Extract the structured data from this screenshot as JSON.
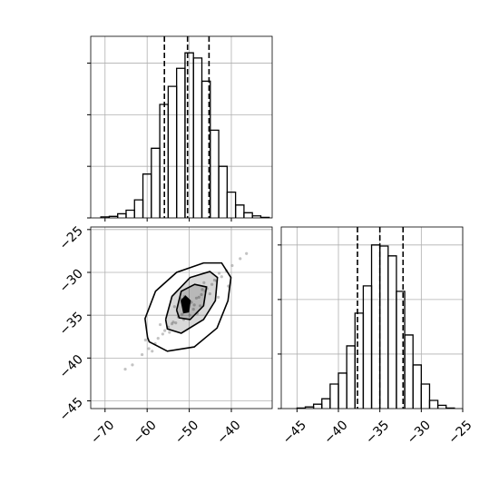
{
  "chart_data": [
    {
      "type": "histogram",
      "color": "#000000",
      "bins": [
        -71,
        -69,
        -67,
        -65,
        -63,
        -61,
        -59,
        -57,
        -55,
        -53,
        -51,
        -49,
        -47,
        -45,
        -43,
        -41,
        -39,
        -37,
        -35,
        -33,
        -31
      ],
      "counts": [
        2,
        3,
        8,
        15,
        35,
        85,
        135,
        220,
        255,
        290,
        320,
        310,
        265,
        170,
        100,
        50,
        25,
        10,
        4,
        1
      ],
      "quantiles": [
        -55.9,
        -50.4,
        -45.3
      ],
      "xlim": [
        -73.4,
        -30.3
      ],
      "ylim": [
        0,
        352
      ],
      "xticks": [
        -70,
        -60,
        -50,
        -40
      ],
      "yticks": [
        0,
        100,
        200,
        300
      ],
      "grid": true
    },
    {
      "type": "scatter",
      "color": "#000000",
      "x": [
        -50.2,
        -47.1,
        -53.8,
        -44.6,
        -56.3,
        -49.5,
        -51.7,
        -46.2,
        -58.1,
        -42.9,
        -52.6,
        -48.3,
        -55.0,
        -45.8,
        -50.9,
        -61.2,
        -39.8,
        -54.1,
        -47.7,
        -49.0,
        -57.4,
        -43.5,
        -51.3,
        -46.9,
        -59.6,
        -41.2,
        -53.2,
        -48.8,
        -52.0,
        -45.1,
        -63.5,
        -37.9,
        -55.8,
        -44.0,
        -50.6,
        -47.4,
        -56.9,
        -42.3,
        -49.9,
        -53.5,
        -60.4,
        -40.7,
        -51.1,
        -46.5,
        -54.7,
        -48.1,
        -58.8,
        -43.1,
        -65.2,
        -36.4
      ],
      "y": [
        -34.1,
        -32.6,
        -35.8,
        -31.4,
        -37.2,
        -33.5,
        -34.9,
        -32.2,
        -38.3,
        -30.1,
        -35.2,
        -33.0,
        -36.4,
        -31.9,
        -34.5,
        -39.6,
        -29.2,
        -36.0,
        -32.9,
        -34.3,
        -37.7,
        -31.0,
        -35.5,
        -32.0,
        -38.9,
        -29.8,
        -35.9,
        -33.8,
        -33.1,
        -32.5,
        -40.8,
        -28.4,
        -36.8,
        -30.9,
        -33.4,
        -33.9,
        -36.1,
        -30.5,
        -35.0,
        -34.0,
        -37.9,
        -31.6,
        -32.8,
        -31.2,
        -37.0,
        -34.8,
        -39.2,
        -32.9,
        -41.3,
        -27.8
      ],
      "contours": [
        {
          "x": [
            -59.9,
            -60.5,
            -58.0,
            -53.0,
            -46.6,
            -42.3,
            -40.1,
            -40.8,
            -43.4,
            -48.8,
            -55.2,
            -59.5,
            -59.9
          ],
          "y": [
            -37.6,
            -35.4,
            -32.2,
            -30.0,
            -28.9,
            -28.9,
            -30.6,
            -33.3,
            -36.5,
            -38.7,
            -39.2,
            -38.1,
            -37.6
          ]
        },
        {
          "x": [
            -55.6,
            -54.1,
            -49.8,
            -45.1,
            -43.3,
            -43.8,
            -46.6,
            -51.9,
            -55.2,
            -55.6
          ],
          "y": [
            -35.5,
            -32.8,
            -30.6,
            -29.9,
            -30.6,
            -33.3,
            -35.5,
            -37.1,
            -36.6,
            -35.5
          ]
        },
        {
          "x": [
            -53.0,
            -51.9,
            -48.7,
            -45.9,
            -46.6,
            -49.8,
            -52.4,
            -53.0
          ],
          "y": [
            -34.4,
            -32.2,
            -31.4,
            -31.7,
            -33.9,
            -35.5,
            -35.3,
            -34.4
          ]
        },
        {
          "x": [
            -51.9,
            -50.9,
            -49.8,
            -50.2,
            -51.3,
            -51.9
          ],
          "y": [
            -33.3,
            -32.8,
            -33.3,
            -34.6,
            -34.7,
            -33.3
          ]
        }
      ],
      "xlim": [
        -73.4,
        -30.3
      ],
      "ylim": [
        -45.9,
        -24.7
      ],
      "xticks": [
        {
          "value": -70,
          "label": "−70"
        },
        {
          "value": -60,
          "label": "−60"
        },
        {
          "value": -50,
          "label": "−50"
        },
        {
          "value": -40,
          "label": "−40"
        }
      ],
      "yticks": [
        {
          "value": -25,
          "label": "−25"
        },
        {
          "value": -30,
          "label": "−30"
        },
        {
          "value": -35,
          "label": "−35"
        },
        {
          "value": -40,
          "label": "−40"
        },
        {
          "value": -45,
          "label": "−45"
        }
      ],
      "grid": true
    },
    {
      "type": "histogram",
      "color": "#000000",
      "bins": [
        -45,
        -44,
        -43,
        -42,
        -41,
        -40,
        -39,
        -38,
        -37,
        -36,
        -35,
        -34,
        -33,
        -32,
        -31,
        -30,
        -29,
        -28,
        -27,
        -26
      ],
      "counts": [
        1,
        3,
        8,
        18,
        45,
        65,
        115,
        175,
        225,
        300,
        298,
        280,
        215,
        135,
        80,
        45,
        15,
        6,
        1
      ],
      "quantiles": [
        -37.7,
        -35.0,
        -32.2
      ],
      "xlim": [
        -46.9,
        -25
      ],
      "ylim": [
        0,
        333
      ],
      "xticks": [
        {
          "value": -45,
          "label": "−45"
        },
        {
          "value": -40,
          "label": "−40"
        },
        {
          "value": -35,
          "label": "−35"
        },
        {
          "value": -30,
          "label": "−30"
        },
        {
          "value": -25,
          "label": "−25"
        }
      ],
      "yticks": [
        0,
        100,
        200,
        300
      ],
      "grid": true
    }
  ]
}
